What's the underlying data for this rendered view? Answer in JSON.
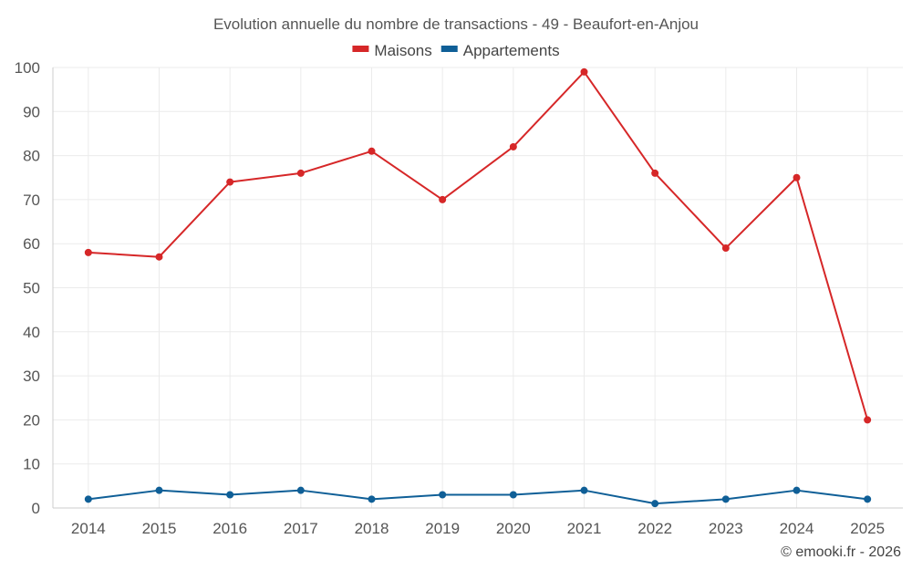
{
  "chart_data": {
    "type": "line",
    "title": "Evolution annuelle du nombre de transactions - 49 - Beaufort-en-Anjou",
    "categories": [
      "2014",
      "2015",
      "2016",
      "2017",
      "2018",
      "2019",
      "2020",
      "2021",
      "2022",
      "2023",
      "2024",
      "2025"
    ],
    "series": [
      {
        "name": "Maisons",
        "color": "#d62728",
        "values": [
          58,
          57,
          74,
          76,
          81,
          70,
          82,
          99,
          76,
          59,
          75,
          20
        ]
      },
      {
        "name": "Appartements",
        "color": "#0f5f97",
        "values": [
          2,
          4,
          3,
          4,
          2,
          3,
          3,
          4,
          1,
          2,
          4,
          2
        ]
      }
    ],
    "ylim": [
      0,
      100
    ],
    "yticks": [
      0,
      10,
      20,
      30,
      40,
      50,
      60,
      70,
      80,
      90,
      100
    ],
    "xlabel": "",
    "ylabel": "",
    "grid": true,
    "legend_position": "top-center"
  },
  "credit": "© emooki.fr - 2026"
}
